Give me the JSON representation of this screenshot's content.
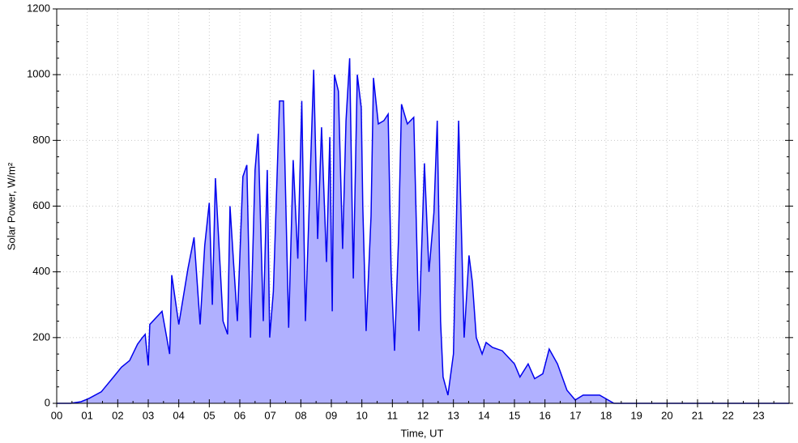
{
  "chart_data": {
    "type": "area",
    "x_label": "Time, UT",
    "y_label": "Solar Power, W/m²",
    "line_color": "#0000ee",
    "fill_color": "#b0b0ff",
    "grid": true,
    "xlim": [
      0,
      24
    ],
    "xticks": [
      {
        "value": 0,
        "label": "00"
      },
      {
        "value": 1,
        "label": "01"
      },
      {
        "value": 2,
        "label": "02"
      },
      {
        "value": 3,
        "label": "03"
      },
      {
        "value": 4,
        "label": "04"
      },
      {
        "value": 5,
        "label": "05"
      },
      {
        "value": 6,
        "label": "06"
      },
      {
        "value": 7,
        "label": "07"
      },
      {
        "value": 8,
        "label": "08"
      },
      {
        "value": 9,
        "label": "09"
      },
      {
        "value": 10,
        "label": "10"
      },
      {
        "value": 11,
        "label": "11"
      },
      {
        "value": 12,
        "label": "12"
      },
      {
        "value": 13,
        "label": "13"
      },
      {
        "value": 14,
        "label": "14"
      },
      {
        "value": 15,
        "label": "15"
      },
      {
        "value": 16,
        "label": "16"
      },
      {
        "value": 17,
        "label": "17"
      },
      {
        "value": 18,
        "label": "18"
      },
      {
        "value": 19,
        "label": "19"
      },
      {
        "value": 20,
        "label": "20"
      },
      {
        "value": 21,
        "label": "21"
      },
      {
        "value": 22,
        "label": "22"
      },
      {
        "value": 23,
        "label": "23"
      }
    ],
    "ylim": [
      0,
      1200
    ],
    "yticks": [
      0,
      200,
      400,
      600,
      800,
      1000,
      1200
    ],
    "x": [
      0,
      0.45,
      0.8,
      1.06,
      1.46,
      1.86,
      2.12,
      2.39,
      2.65,
      2.81,
      2.9,
      3.0,
      3.05,
      3.45,
      3.7,
      3.77,
      4.0,
      4.3,
      4.5,
      4.7,
      4.85,
      5.0,
      5.1,
      5.2,
      5.45,
      5.6,
      5.68,
      5.8,
      5.92,
      6.1,
      6.23,
      6.35,
      6.5,
      6.6,
      6.77,
      6.9,
      6.98,
      7.1,
      7.3,
      7.43,
      7.6,
      7.75,
      7.9,
      8.03,
      8.15,
      8.42,
      8.55,
      8.68,
      8.84,
      8.95,
      9.03,
      9.1,
      9.23,
      9.37,
      9.48,
      9.6,
      9.72,
      9.85,
      9.98,
      10.03,
      10.14,
      10.3,
      10.38,
      10.54,
      10.72,
      10.86,
      10.96,
      11.07,
      11.2,
      11.3,
      11.49,
      11.7,
      11.87,
      12.05,
      12.2,
      12.36,
      12.47,
      12.58,
      12.66,
      12.82,
      13.0,
      13.17,
      13.35,
      13.51,
      13.62,
      13.75,
      13.94,
      14.07,
      14.28,
      14.6,
      15.0,
      15.18,
      15.45,
      15.66,
      15.93,
      16.14,
      16.41,
      16.72,
      16.99,
      17.25,
      17.79,
      18.26,
      24
    ],
    "values": [
      0,
      0,
      5,
      15,
      35,
      80,
      110,
      130,
      180,
      200,
      210,
      115,
      240,
      280,
      150,
      390,
      240,
      410,
      505,
      240,
      480,
      610,
      300,
      685,
      250,
      210,
      600,
      420,
      250,
      690,
      725,
      200,
      710,
      820,
      250,
      710,
      200,
      340,
      920,
      920,
      230,
      740,
      440,
      920,
      250,
      1015,
      500,
      840,
      430,
      810,
      280,
      1000,
      950,
      470,
      860,
      1050,
      380,
      1000,
      900,
      600,
      220,
      570,
      990,
      850,
      860,
      880,
      400,
      160,
      500,
      910,
      850,
      870,
      220,
      730,
      400,
      580,
      860,
      250,
      80,
      25,
      150,
      860,
      200,
      450,
      370,
      200,
      150,
      185,
      170,
      160,
      120,
      80,
      120,
      75,
      90,
      165,
      120,
      40,
      10,
      25,
      25,
      0,
      0
    ]
  }
}
